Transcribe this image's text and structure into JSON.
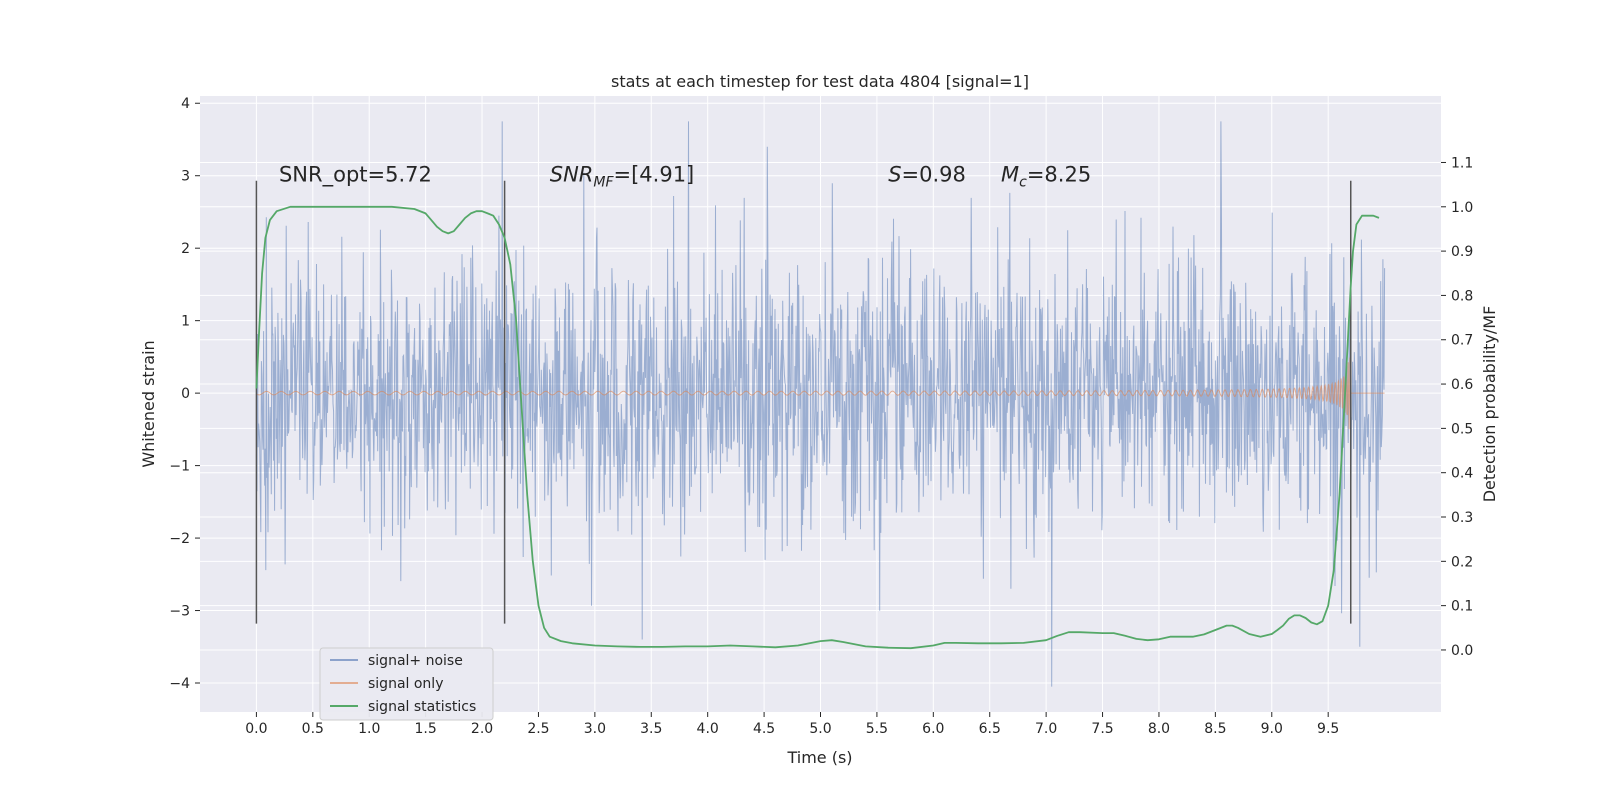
{
  "chart_data": {
    "type": "line",
    "title": "stats at each timestep for test data 4804 [signal=1]",
    "xlabel": "Time (s)",
    "ylabel": "Whitened strain",
    "y2label": "Detection probability/MF",
    "xlim": [
      -0.5,
      10.5
    ],
    "ylim": [
      -4.4,
      4.1
    ],
    "y2lim": [
      -0.14,
      1.25
    ],
    "xticks": [
      "0.0",
      "0.5",
      "1.0",
      "1.5",
      "2.0",
      "2.5",
      "3.0",
      "3.5",
      "4.0",
      "4.5",
      "5.0",
      "5.5",
      "6.0",
      "6.5",
      "7.0",
      "7.5",
      "8.0",
      "8.5",
      "9.0",
      "9.5"
    ],
    "yticks": [
      -4,
      -3,
      -2,
      -1,
      0,
      1,
      2,
      3,
      4
    ],
    "y2ticks": [
      "0.0",
      "0.1",
      "0.2",
      "0.3",
      "0.4",
      "0.5",
      "0.6",
      "0.7",
      "0.8",
      "0.9",
      "1.0",
      "1.1"
    ],
    "grid": true,
    "legend_position": "lower-left",
    "colors": {
      "background": "#eaeaf2",
      "grid": "#ffffff",
      "noise": "#4c72b0",
      "signal": "#dd8452",
      "statistics": "#55a868",
      "marker_lines": "#555555"
    },
    "annotations": [
      {
        "label": "SNR_opt=5.72",
        "x": 0.2,
        "y": 2.95
      },
      {
        "label": "SNR",
        "sub": "MF",
        "suffix": "=[4.91]",
        "x": 2.6,
        "y": 2.95,
        "italic": true
      },
      {
        "label": "S",
        "suffix": "=0.98",
        "x": 5.6,
        "y": 2.95,
        "italic": true
      },
      {
        "label": "M",
        "sub": "c",
        "suffix": "=8.25",
        "x": 6.6,
        "y": 2.95,
        "italic": true
      }
    ],
    "vlines": [
      0.0,
      2.2,
      9.7
    ],
    "series": [
      {
        "name": "signal+ noise",
        "kind": "noise",
        "x_range": [
          0.0,
          10.0
        ],
        "samples": 2048,
        "std": 0.9,
        "max_abs": 3.8,
        "peaks": [
          [
            2.18,
            3.75
          ],
          [
            3.83,
            3.75
          ],
          [
            8.55,
            3.75
          ],
          [
            7.05,
            -4.05
          ],
          [
            9.78,
            -3.5
          ],
          [
            3.42,
            -3.4
          ]
        ]
      },
      {
        "name": "signal only",
        "kind": "chirp",
        "x_range": [
          0.0,
          9.7
        ],
        "amplitude_end": 0.5,
        "amplitude_start": 0.02
      },
      {
        "name": "signal statistics",
        "kind": "line",
        "axis": "right",
        "x": [
          0.0,
          0.02,
          0.05,
          0.08,
          0.12,
          0.18,
          0.3,
          0.5,
          0.8,
          1.0,
          1.2,
          1.4,
          1.5,
          1.55,
          1.6,
          1.65,
          1.7,
          1.75,
          1.8,
          1.85,
          1.9,
          1.95,
          2.0,
          2.05,
          2.1,
          2.15,
          2.2,
          2.25,
          2.3,
          2.35,
          2.4,
          2.45,
          2.5,
          2.55,
          2.6,
          2.7,
          2.8,
          3.0,
          3.2,
          3.4,
          3.6,
          3.8,
          4.0,
          4.2,
          4.4,
          4.6,
          4.8,
          5.0,
          5.1,
          5.2,
          5.4,
          5.6,
          5.8,
          6.0,
          6.1,
          6.2,
          6.4,
          6.6,
          6.8,
          7.0,
          7.1,
          7.2,
          7.3,
          7.5,
          7.6,
          7.7,
          7.8,
          7.9,
          8.0,
          8.1,
          8.2,
          8.3,
          8.4,
          8.5,
          8.6,
          8.65,
          8.7,
          8.8,
          8.9,
          9.0,
          9.05,
          9.1,
          9.15,
          9.2,
          9.25,
          9.3,
          9.35,
          9.4,
          9.45,
          9.5,
          9.55,
          9.6,
          9.65,
          9.7,
          9.72,
          9.75,
          9.8,
          9.85,
          9.9,
          9.95
        ],
        "y": [
          0.59,
          0.7,
          0.85,
          0.93,
          0.97,
          0.99,
          1.0,
          1.0,
          1.0,
          1.0,
          1.0,
          0.995,
          0.985,
          0.97,
          0.955,
          0.945,
          0.94,
          0.945,
          0.96,
          0.975,
          0.985,
          0.99,
          0.99,
          0.985,
          0.98,
          0.96,
          0.93,
          0.87,
          0.75,
          0.55,
          0.35,
          0.2,
          0.1,
          0.05,
          0.03,
          0.02,
          0.015,
          0.01,
          0.008,
          0.007,
          0.007,
          0.008,
          0.008,
          0.01,
          0.008,
          0.006,
          0.01,
          0.02,
          0.022,
          0.018,
          0.008,
          0.005,
          0.004,
          0.01,
          0.016,
          0.016,
          0.015,
          0.015,
          0.016,
          0.022,
          0.032,
          0.04,
          0.04,
          0.038,
          0.038,
          0.032,
          0.025,
          0.022,
          0.024,
          0.03,
          0.03,
          0.03,
          0.035,
          0.045,
          0.055,
          0.055,
          0.05,
          0.036,
          0.03,
          0.036,
          0.045,
          0.055,
          0.07,
          0.078,
          0.078,
          0.072,
          0.062,
          0.058,
          0.065,
          0.1,
          0.18,
          0.35,
          0.58,
          0.82,
          0.9,
          0.96,
          0.98,
          0.98,
          0.98,
          0.975
        ]
      }
    ]
  }
}
